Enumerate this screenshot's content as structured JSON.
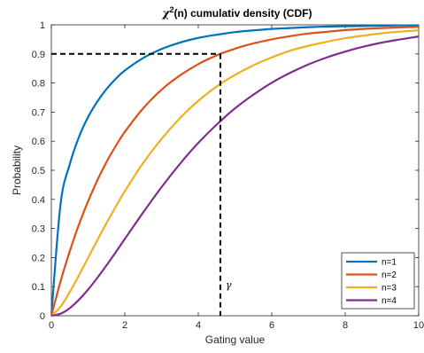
{
  "chart_data": {
    "type": "line",
    "title_prefix": "χ",
    "title_sup": "2",
    "title_suffix": "(n) cumulativ density (CDF)",
    "xlabel": "Gating value",
    "ylabel": "Probability",
    "xlim": [
      0,
      10
    ],
    "ylim": [
      0,
      1
    ],
    "xticks": [
      "0",
      "2",
      "4",
      "6",
      "8",
      "10"
    ],
    "yticks": [
      "0",
      "0.1",
      "0.2",
      "0.3",
      "0.4",
      "0.5",
      "0.6",
      "0.7",
      "0.8",
      "0.9",
      "1"
    ],
    "grid": false,
    "legend_position": "bottom-right",
    "x": [
      0,
      0.25,
      0.5,
      0.75,
      1,
      1.25,
      1.5,
      1.75,
      2,
      2.5,
      3,
      3.5,
      4,
      4.5,
      5,
      5.5,
      6,
      6.5,
      7,
      7.5,
      8,
      8.5,
      9,
      9.5,
      10
    ],
    "series": [
      {
        "name": "n=1",
        "color": "#0072BD",
        "values": [
          0,
          0.383,
          0.52,
          0.614,
          0.683,
          0.736,
          0.779,
          0.814,
          0.843,
          0.886,
          0.917,
          0.939,
          0.955,
          0.966,
          0.975,
          0.981,
          0.986,
          0.989,
          0.992,
          0.994,
          0.995,
          0.996,
          0.997,
          0.998,
          0.998
        ]
      },
      {
        "name": "n=2",
        "color": "#D95319",
        "values": [
          0,
          0.118,
          0.221,
          0.313,
          0.393,
          0.465,
          0.528,
          0.583,
          0.632,
          0.713,
          0.777,
          0.826,
          0.865,
          0.895,
          0.918,
          0.936,
          0.95,
          0.961,
          0.97,
          0.976,
          0.982,
          0.986,
          0.989,
          0.991,
          0.993
        ]
      },
      {
        "name": "n=3",
        "color": "#EDB120",
        "values": [
          0,
          0.031,
          0.081,
          0.139,
          0.199,
          0.259,
          0.318,
          0.374,
          0.428,
          0.525,
          0.608,
          0.679,
          0.739,
          0.788,
          0.828,
          0.861,
          0.888,
          0.911,
          0.928,
          0.942,
          0.954,
          0.963,
          0.971,
          0.977,
          0.981
        ]
      },
      {
        "name": "n=4",
        "color": "#7E2F8E",
        "values": [
          0,
          0.007,
          0.026,
          0.055,
          0.09,
          0.13,
          0.173,
          0.218,
          0.264,
          0.355,
          0.442,
          0.522,
          0.594,
          0.657,
          0.713,
          0.76,
          0.801,
          0.835,
          0.864,
          0.888,
          0.908,
          0.925,
          0.939,
          0.95,
          0.96
        ]
      }
    ],
    "annotation": {
      "label": "γ",
      "x": 4.6,
      "y": 0.9
    }
  }
}
